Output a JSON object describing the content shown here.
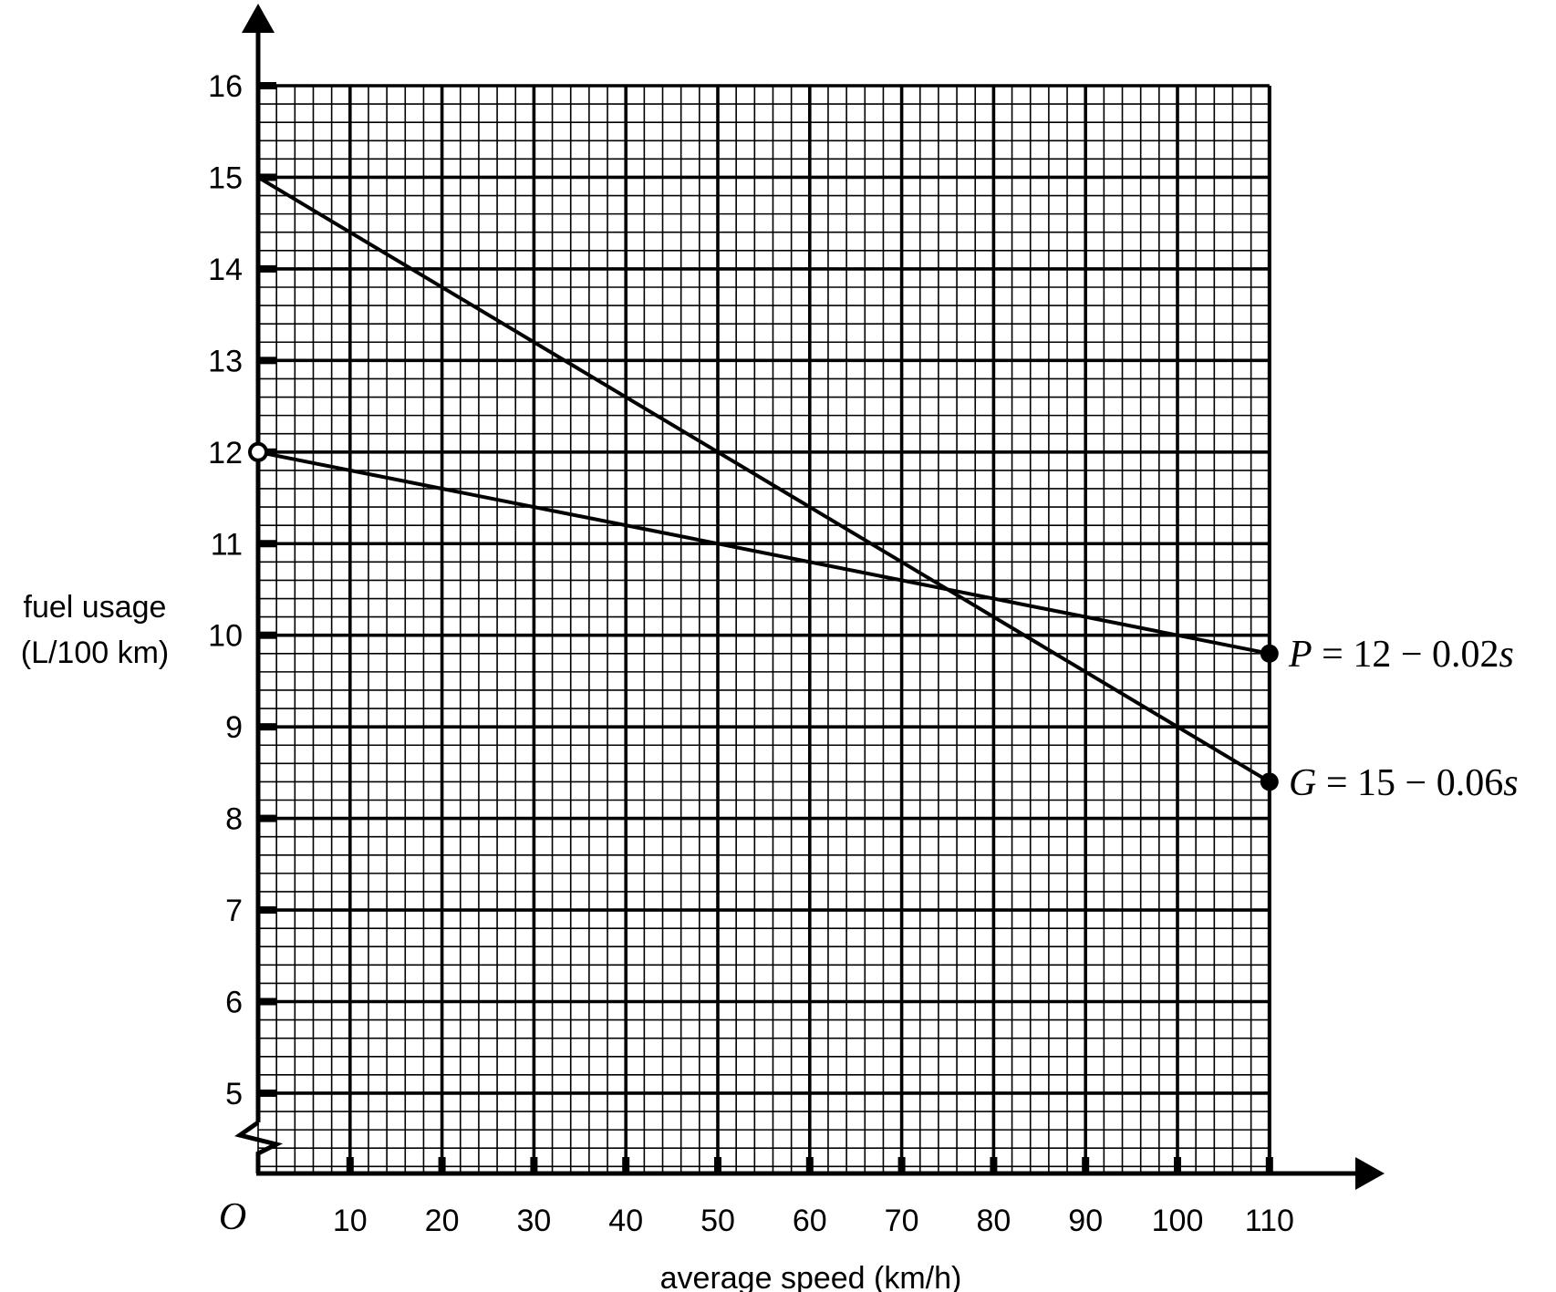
{
  "chart_data": {
    "type": "line",
    "title": "",
    "xlabel": "average speed (km/h)",
    "ylabel_lines": [
      "fuel usage",
      "(L/100 km)"
    ],
    "ylabel": "fuel usage (L/100 km)",
    "origin_label": "O",
    "xlim": [
      0,
      110
    ],
    "ylim": [
      4,
      16
    ],
    "y_axis_break": true,
    "x_ticks": [
      10,
      20,
      30,
      40,
      50,
      60,
      70,
      80,
      90,
      100,
      110
    ],
    "y_ticks": [
      5,
      6,
      7,
      8,
      9,
      10,
      11,
      12,
      13,
      14,
      15,
      16
    ],
    "grid": {
      "major_x": 10,
      "minor_x": 2,
      "major_y": 1,
      "minor_y": 0.2
    },
    "series": [
      {
        "name": "P",
        "label": "P = 12 − 0.02s",
        "label_var": "P",
        "label_rest": " = 12 − 0.02",
        "label_s": "s",
        "equation": "P = 12 - 0.02s",
        "x": [
          0,
          110
        ],
        "y": [
          12,
          9.8
        ],
        "start_marker": "open-circle",
        "end_marker": "filled-circle"
      },
      {
        "name": "G",
        "label": "G = 15 − 0.06s",
        "label_var": "G",
        "label_rest": " = 15 − 0.06",
        "label_s": "s",
        "equation": "G = 15 - 0.06s",
        "x": [
          0,
          110
        ],
        "y": [
          15,
          8.4
        ],
        "start_marker": "none",
        "end_marker": "filled-circle"
      }
    ],
    "intersection": {
      "x": 75,
      "y": 10.5
    }
  }
}
